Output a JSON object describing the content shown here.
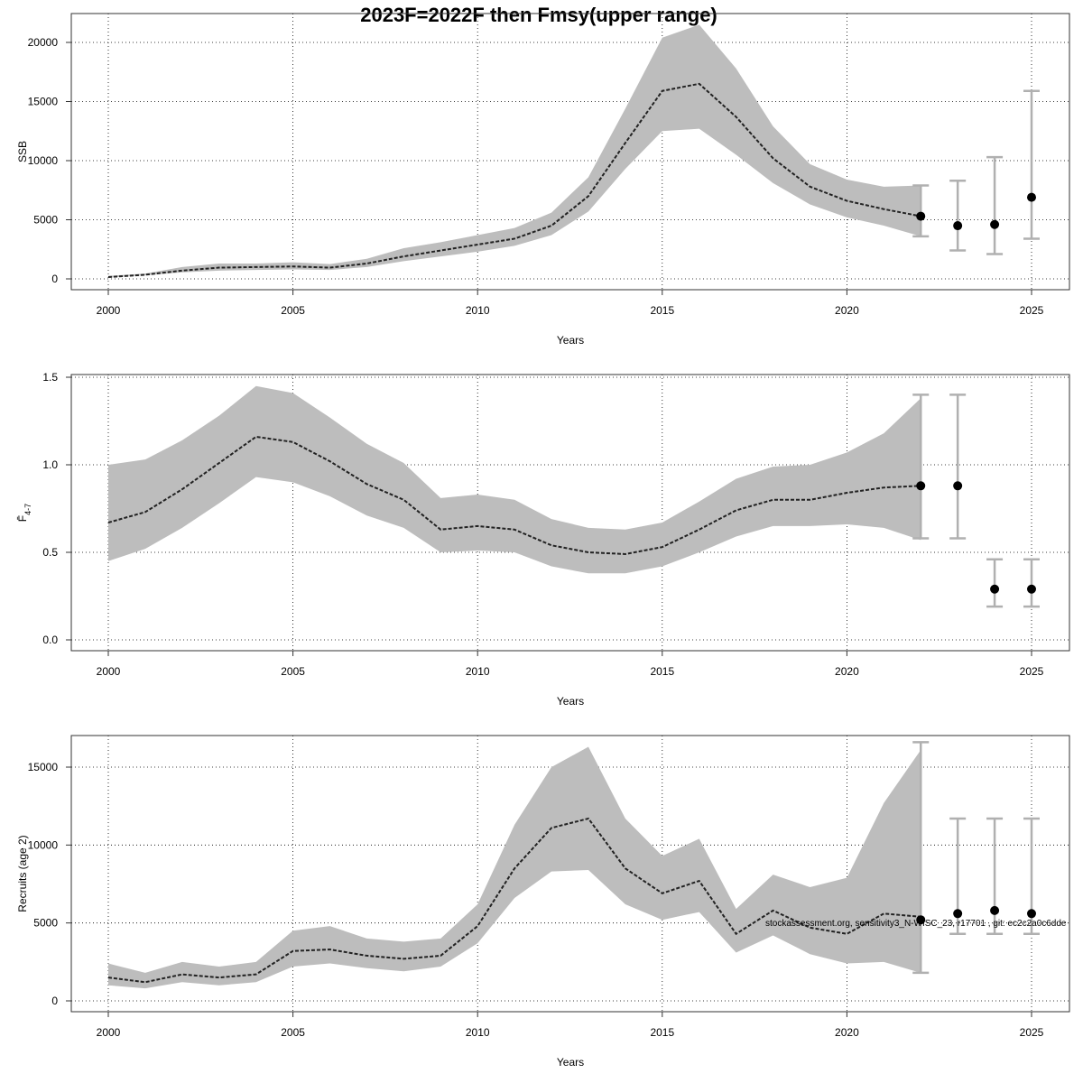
{
  "title": "2023F=2022F then Fmsy(upper range)",
  "footnote": "stockassessment.org, sensitivity3_N-WISC_23, r17701 , git: ec2c2a0c6dde",
  "chart_data": [
    {
      "type": "line",
      "xlabel": "Years",
      "ylabel": "SSB",
      "xlim": [
        2000,
        2025
      ],
      "ylim": [
        0,
        20000
      ],
      "xticks": [
        "2000",
        "2005",
        "2010",
        "2015",
        "2020",
        "2025"
      ],
      "yticks": [
        "0",
        "5000",
        "10000",
        "15000",
        "20000"
      ],
      "grid": true,
      "x": [
        2000,
        2001,
        2002,
        2003,
        2004,
        2005,
        2006,
        2007,
        2008,
        2009,
        2010,
        2011,
        2012,
        2013,
        2014,
        2015,
        2016,
        2017,
        2018,
        2019,
        2020,
        2021,
        2022
      ],
      "estimate": [
        150,
        350,
        700,
        950,
        1000,
        1050,
        950,
        1300,
        1900,
        2400,
        2900,
        3400,
        4500,
        7000,
        11500,
        15900,
        16500,
        13700,
        10200,
        7800,
        6600,
        5900,
        5300
      ],
      "lower": [
        100,
        300,
        550,
        700,
        750,
        800,
        750,
        1000,
        1500,
        1900,
        2300,
        2800,
        3700,
        5700,
        9300,
        12500,
        12700,
        10500,
        8100,
        6300,
        5200,
        4500,
        3600
      ],
      "upper": [
        250,
        450,
        1000,
        1300,
        1300,
        1400,
        1250,
        1700,
        2600,
        3100,
        3700,
        4300,
        5600,
        8600,
        14400,
        20400,
        21500,
        17800,
        12900,
        9700,
        8400,
        7800,
        7900
      ],
      "forecast": [
        {
          "x": 2022,
          "value": 5300,
          "low": 3600,
          "high": 7900
        },
        {
          "x": 2023,
          "value": 4500,
          "low": 2400,
          "high": 8300
        },
        {
          "x": 2024,
          "value": 4600,
          "low": 2100,
          "high": 10300
        },
        {
          "x": 2025,
          "value": 6900,
          "low": 3400,
          "high": 15900
        }
      ]
    },
    {
      "type": "line",
      "xlabel": "Years",
      "ylabel": "F̄4-7",
      "ylabel_main": "F̄",
      "ylabel_sub": "4-7",
      "xlim": [
        2000,
        2025
      ],
      "ylim": [
        0,
        1.5
      ],
      "xticks": [
        "2000",
        "2005",
        "2010",
        "2015",
        "2020",
        "2025"
      ],
      "yticks": [
        "0.0",
        "0.5",
        "1.0",
        "1.5"
      ],
      "grid": true,
      "x": [
        2000,
        2001,
        2002,
        2003,
        2004,
        2005,
        2006,
        2007,
        2008,
        2009,
        2010,
        2011,
        2012,
        2013,
        2014,
        2015,
        2016,
        2017,
        2018,
        2019,
        2020,
        2021,
        2022
      ],
      "estimate": [
        0.67,
        0.73,
        0.86,
        1.01,
        1.16,
        1.13,
        1.02,
        0.89,
        0.8,
        0.63,
        0.65,
        0.63,
        0.54,
        0.5,
        0.49,
        0.53,
        0.63,
        0.74,
        0.8,
        0.8,
        0.84,
        0.87,
        0.88
      ],
      "lower": [
        0.45,
        0.52,
        0.64,
        0.78,
        0.93,
        0.9,
        0.82,
        0.71,
        0.64,
        0.5,
        0.51,
        0.5,
        0.42,
        0.38,
        0.38,
        0.42,
        0.5,
        0.59,
        0.65,
        0.65,
        0.66,
        0.64,
        0.57
      ],
      "upper": [
        1.0,
        1.03,
        1.14,
        1.28,
        1.45,
        1.41,
        1.27,
        1.12,
        1.01,
        0.81,
        0.83,
        0.8,
        0.69,
        0.64,
        0.63,
        0.67,
        0.79,
        0.92,
        0.99,
        1.0,
        1.07,
        1.18,
        1.38
      ],
      "forecast": [
        {
          "x": 2022,
          "value": 0.88,
          "low": 0.58,
          "high": 1.4
        },
        {
          "x": 2023,
          "value": 0.88,
          "low": 0.58,
          "high": 1.4
        },
        {
          "x": 2024,
          "value": 0.29,
          "low": 0.19,
          "high": 0.46
        },
        {
          "x": 2025,
          "value": 0.29,
          "low": 0.19,
          "high": 0.46
        }
      ]
    },
    {
      "type": "line",
      "xlabel": "Years",
      "ylabel": "Recruits (age 2)",
      "xlim": [
        2000,
        2025
      ],
      "ylim": [
        0,
        15000
      ],
      "xticks": [
        "2000",
        "2005",
        "2010",
        "2015",
        "2020",
        "2025"
      ],
      "yticks": [
        "0",
        "5000",
        "10000",
        "15000"
      ],
      "grid": true,
      "x": [
        2000,
        2001,
        2002,
        2003,
        2004,
        2005,
        2006,
        2007,
        2008,
        2009,
        2010,
        2011,
        2012,
        2013,
        2014,
        2015,
        2016,
        2017,
        2018,
        2019,
        2020,
        2021,
        2022
      ],
      "estimate": [
        1500,
        1200,
        1700,
        1500,
        1700,
        3200,
        3300,
        2900,
        2700,
        2900,
        4800,
        8500,
        11100,
        11700,
        8500,
        6900,
        7700,
        4300,
        5800,
        4700,
        4300,
        5600,
        5400
      ],
      "lower": [
        1000,
        800,
        1200,
        1000,
        1200,
        2200,
        2400,
        2100,
        1900,
        2200,
        3700,
        6600,
        8300,
        8400,
        6200,
        5200,
        5700,
        3100,
        4200,
        3000,
        2400,
        2500,
        1800
      ],
      "upper": [
        2400,
        1800,
        2500,
        2200,
        2500,
        4500,
        4800,
        4000,
        3800,
        4000,
        6200,
        11300,
        15000,
        16300,
        11700,
        9300,
        10400,
        5900,
        8100,
        7300,
        7900,
        12700,
        16100
      ],
      "forecast": [
        {
          "x": 2022,
          "value": 5200,
          "low": 1800,
          "high": 16600
        },
        {
          "x": 2023,
          "value": 5600,
          "low": 4300,
          "high": 11700
        },
        {
          "x": 2024,
          "value": 5800,
          "low": 4300,
          "high": 11700
        },
        {
          "x": 2025,
          "value": 5600,
          "low": 4300,
          "high": 11700
        }
      ]
    }
  ]
}
